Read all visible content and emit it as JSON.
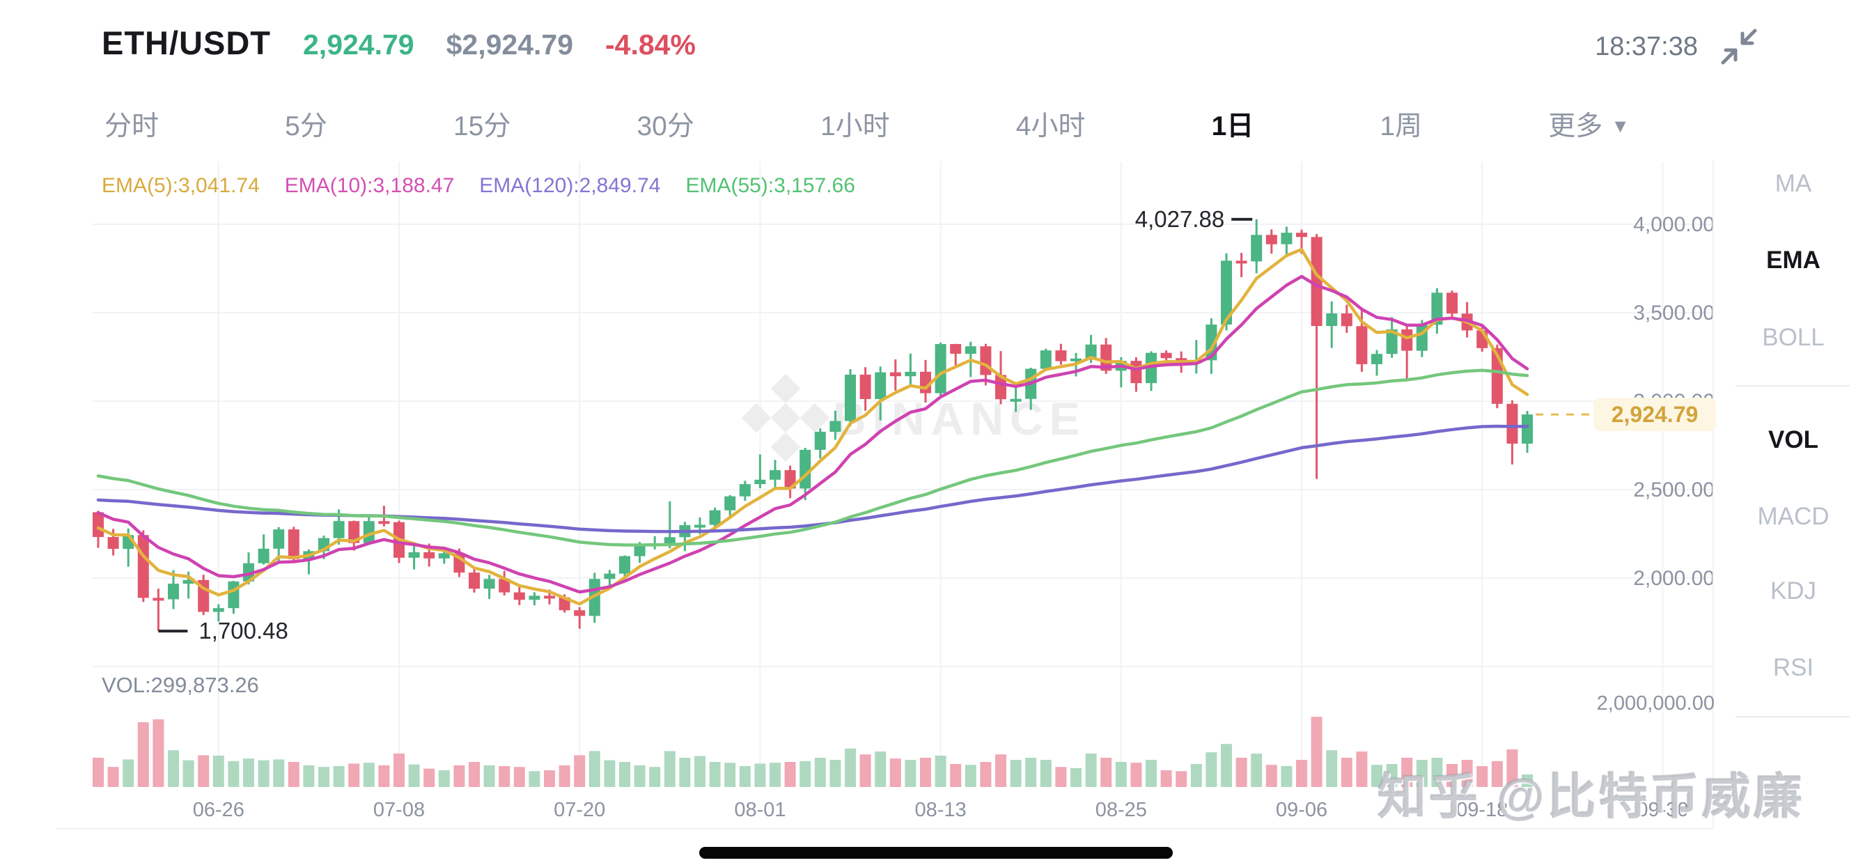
{
  "header": {
    "symbol": "ETH/USDT",
    "price": "2,924.79",
    "price_usd": "$2,924.79",
    "change": "-4.84%",
    "time": "18:37:38"
  },
  "tabs": [
    {
      "label": "分时",
      "active": false
    },
    {
      "label": "5分",
      "active": false
    },
    {
      "label": "15分",
      "active": false
    },
    {
      "label": "30分",
      "active": false
    },
    {
      "label": "1小时",
      "active": false
    },
    {
      "label": "4小时",
      "active": false
    },
    {
      "label": "1日",
      "active": true
    },
    {
      "label": "1周",
      "active": false
    },
    {
      "label": "更多",
      "active": false
    }
  ],
  "legend": [
    {
      "label": "EMA(5):3,041.74",
      "color": "#d9a93c"
    },
    {
      "label": "EMA(10):3,188.47",
      "color": "#d44fb4"
    },
    {
      "label": "EMA(120):2,849.74",
      "color": "#8276d4"
    },
    {
      "label": "EMA(55):3,157.66",
      "color": "#52c273"
    }
  ],
  "side_panel": {
    "items": [
      {
        "label": "MA",
        "active": false
      },
      {
        "label": "EMA",
        "active": true
      },
      {
        "label": "BOLL",
        "active": false
      },
      {
        "label": "VOL",
        "active": true
      },
      {
        "label": "MACD",
        "active": false
      },
      {
        "label": "KDJ",
        "active": false
      },
      {
        "label": "RSI",
        "active": false
      }
    ]
  },
  "volume_pane": {
    "label": "VOL:299,873.26",
    "axis_label": "2,000,000.00"
  },
  "watermarks": {
    "brand": "BINANCE",
    "user": "知乎 @比特币威廉"
  },
  "chart_data": {
    "type": "candlestick",
    "y_ticks": [
      {
        "price": 4000,
        "label": "4,000.00"
      },
      {
        "price": 3500,
        "label": "3,500.00"
      },
      {
        "price": 3000,
        "label": "3,000.00"
      },
      {
        "price": 2500,
        "label": "2,500.00"
      },
      {
        "price": 2000,
        "label": "2,000.00"
      },
      {
        "price": 1500,
        "label": null
      }
    ],
    "x_ticks": [
      {
        "label": "06-26",
        "i": 8
      },
      {
        "label": "07-08",
        "i": 20
      },
      {
        "label": "07-20",
        "i": 32
      },
      {
        "label": "08-01",
        "i": 44
      },
      {
        "label": "08-13",
        "i": 56
      },
      {
        "label": "08-25",
        "i": 68
      },
      {
        "label": "09-06",
        "i": 80
      },
      {
        "label": "09-18",
        "i": 92
      },
      {
        "label": "09-30",
        "i": 104
      }
    ],
    "volume_axis": {
      "value_k": 2000
    },
    "current_price": {
      "label": "2,924.79",
      "value": 2924.79
    },
    "annotations": [
      {
        "type": "high",
        "label": "4,027.88",
        "value": 4027.88,
        "index": 77
      },
      {
        "type": "low",
        "label": "1,700.48",
        "value": 1700.48,
        "index": 4
      }
    ],
    "colors": {
      "up": "#4bb583",
      "down": "#e1566b",
      "vol_up": "#aed9c0",
      "vol_down": "#f0a8b4",
      "price_line": "#e5bb55",
      "tag_bg": "#fdf6e2",
      "tag_text": "#d2a33b",
      "grid": "#f1f2f5",
      "axis_text": "#8b93a1",
      "annotation": "#23262b",
      "watermark": "#ededee"
    },
    "emas": [
      {
        "name": "ema5",
        "period": 5,
        "seed": 2310,
        "color": "#e2b33d"
      },
      {
        "name": "ema10",
        "period": 10,
        "seed": 2400,
        "color": "#cf42b0"
      },
      {
        "name": "ema120",
        "period": 120,
        "seed": 2445,
        "color": "#7468cc"
      },
      {
        "name": "ema55",
        "period": 55,
        "seed": 2590,
        "color": "#74c77c"
      }
    ],
    "candles": [
      [
        "06-18",
        2372,
        2380,
        2171,
        2232,
        700
      ],
      [
        "06-19",
        2232,
        2278,
        2128,
        2165,
        480
      ],
      [
        "06-20",
        2165,
        2280,
        2064,
        2243,
        660
      ],
      [
        "06-21",
        2243,
        2270,
        1865,
        1888,
        1550
      ],
      [
        "06-22",
        1888,
        1940,
        1700.48,
        1880,
        1620
      ],
      [
        "06-23",
        1880,
        2045,
        1825,
        1968,
        880
      ],
      [
        "06-24",
        1968,
        2036,
        1884,
        1989,
        640
      ],
      [
        "06-25",
        1989,
        2019,
        1791,
        1809,
        760
      ],
      [
        "06-26",
        1809,
        1852,
        1754,
        1830,
        750
      ],
      [
        "06-27",
        1830,
        1984,
        1798,
        1981,
        620
      ],
      [
        "06-28",
        1981,
        2145,
        1964,
        2084,
        680
      ],
      [
        "06-29",
        2084,
        2247,
        2076,
        2166,
        640
      ],
      [
        "06-30",
        2166,
        2288,
        2089,
        2275,
        660
      ],
      [
        "07-01",
        2275,
        2290,
        2086,
        2107,
        600
      ],
      [
        "07-02",
        2107,
        2162,
        2021,
        2152,
        520
      ],
      [
        "07-03",
        2152,
        2240,
        2107,
        2226,
        480
      ],
      [
        "07-04",
        2226,
        2388,
        2189,
        2322,
        500
      ],
      [
        "07-05",
        2322,
        2325,
        2155,
        2198,
        560
      ],
      [
        "07-06",
        2198,
        2350,
        2193,
        2322,
        580
      ],
      [
        "07-07",
        2322,
        2409,
        2292,
        2316,
        520
      ],
      [
        "07-08",
        2316,
        2325,
        2085,
        2115,
        800
      ],
      [
        "07-09",
        2115,
        2189,
        2049,
        2146,
        540
      ],
      [
        "07-10",
        2146,
        2195,
        2065,
        2111,
        440
      ],
      [
        "07-11",
        2111,
        2174,
        2081,
        2140,
        400
      ],
      [
        "07-12",
        2140,
        2167,
        2006,
        2031,
        520
      ],
      [
        "07-13",
        2031,
        2056,
        1918,
        1940,
        600
      ],
      [
        "07-14",
        1940,
        2018,
        1882,
        1995,
        520
      ],
      [
        "07-15",
        1995,
        2041,
        1902,
        1919,
        500
      ],
      [
        "07-16",
        1919,
        1952,
        1847,
        1877,
        480
      ],
      [
        "07-17",
        1877,
        1920,
        1846,
        1900,
        380
      ],
      [
        "07-18",
        1900,
        1934,
        1851,
        1891,
        400
      ],
      [
        "07-19",
        1891,
        1908,
        1805,
        1818,
        520
      ],
      [
        "07-20",
        1818,
        1836,
        1714,
        1786,
        760
      ],
      [
        "07-21",
        1786,
        2030,
        1747,
        1995,
        860
      ],
      [
        "07-22",
        1995,
        2046,
        1945,
        2025,
        640
      ],
      [
        "07-23",
        2025,
        2128,
        2000,
        2124,
        600
      ],
      [
        "07-24",
        2124,
        2204,
        2086,
        2189,
        520
      ],
      [
        "07-25",
        2189,
        2237,
        2162,
        2197,
        480
      ],
      [
        "07-26",
        2197,
        2434,
        2168,
        2231,
        860
      ],
      [
        "07-27",
        2231,
        2318,
        2152,
        2299,
        700
      ],
      [
        "07-28",
        2299,
        2343,
        2248,
        2301,
        740
      ],
      [
        "07-29",
        2301,
        2398,
        2276,
        2383,
        600
      ],
      [
        "07-30",
        2383,
        2469,
        2335,
        2462,
        580
      ],
      [
        "07-31",
        2462,
        2550,
        2437,
        2531,
        500
      ],
      [
        "08-01",
        2531,
        2699,
        2508,
        2556,
        560
      ],
      [
        "08-02",
        2556,
        2668,
        2512,
        2610,
        580
      ],
      [
        "08-03",
        2610,
        2636,
        2452,
        2506,
        600
      ],
      [
        "08-04",
        2506,
        2736,
        2441,
        2725,
        620
      ],
      [
        "08-05",
        2725,
        2846,
        2676,
        2827,
        700
      ],
      [
        "08-06",
        2827,
        2946,
        2782,
        2888,
        650
      ],
      [
        "08-07",
        2888,
        3181,
        2858,
        3150,
        920
      ],
      [
        "08-08",
        3150,
        3192,
        2946,
        3012,
        780
      ],
      [
        "08-09",
        3012,
        3196,
        2891,
        3163,
        850
      ],
      [
        "08-10",
        3163,
        3236,
        3060,
        3141,
        680
      ],
      [
        "08-11",
        3141,
        3269,
        3092,
        3166,
        650
      ],
      [
        "08-12",
        3166,
        3233,
        2992,
        3045,
        700
      ],
      [
        "08-13",
        3045,
        3331,
        3021,
        3323,
        750
      ],
      [
        "08-14",
        3323,
        3324,
        3201,
        3268,
        550
      ],
      [
        "08-15",
        3268,
        3336,
        3136,
        3310,
        530
      ],
      [
        "08-16",
        3310,
        3324,
        3089,
        3148,
        600
      ],
      [
        "08-17",
        3148,
        3283,
        2983,
        3011,
        780
      ],
      [
        "08-18",
        3011,
        3101,
        2940,
        3013,
        650
      ],
      [
        "08-19",
        3013,
        3189,
        2951,
        3183,
        700
      ],
      [
        "08-20",
        3183,
        3297,
        3171,
        3287,
        650
      ],
      [
        "08-21",
        3287,
        3324,
        3206,
        3226,
        480
      ],
      [
        "08-22",
        3226,
        3273,
        3140,
        3241,
        450
      ],
      [
        "08-23",
        3241,
        3374,
        3216,
        3320,
        800
      ],
      [
        "08-24",
        3320,
        3357,
        3154,
        3172,
        700
      ],
      [
        "08-25",
        3172,
        3249,
        3078,
        3228,
        600
      ],
      [
        "08-26",
        3228,
        3248,
        3053,
        3102,
        580
      ],
      [
        "08-27",
        3102,
        3282,
        3058,
        3273,
        650
      ],
      [
        "08-28",
        3273,
        3287,
        3212,
        3243,
        400
      ],
      [
        "08-29",
        3243,
        3281,
        3161,
        3222,
        380
      ],
      [
        "08-30",
        3222,
        3346,
        3156,
        3231,
        550
      ],
      [
        "08-31",
        3231,
        3468,
        3154,
        3433,
        830
      ],
      [
        "09-01",
        3433,
        3836,
        3400,
        3794,
        1030
      ],
      [
        "09-02",
        3794,
        3838,
        3701,
        3790,
        700
      ],
      [
        "09-03",
        3790,
        4027.88,
        3723,
        3940,
        800
      ],
      [
        "09-04",
        3940,
        3971,
        3834,
        3887,
        530
      ],
      [
        "09-05",
        3887,
        3986,
        3817,
        3952,
        500
      ],
      [
        "09-06",
        3952,
        3970,
        3833,
        3928,
        650
      ],
      [
        "09-07",
        3928,
        3945,
        2560,
        3425,
        1680
      ],
      [
        "09-08",
        3425,
        3564,
        3300,
        3496,
        880
      ],
      [
        "09-09",
        3496,
        3545,
        3386,
        3424,
        700
      ],
      [
        "09-10",
        3424,
        3512,
        3166,
        3209,
        850
      ],
      [
        "09-11",
        3209,
        3289,
        3144,
        3267,
        530
      ],
      [
        "09-12",
        3267,
        3475,
        3245,
        3406,
        550
      ],
      [
        "09-13",
        3406,
        3433,
        3118,
        3285,
        700
      ],
      [
        "09-14",
        3285,
        3459,
        3249,
        3432,
        650
      ],
      [
        "09-15",
        3432,
        3639,
        3382,
        3613,
        700
      ],
      [
        "09-16",
        3613,
        3625,
        3470,
        3495,
        550
      ],
      [
        "09-17",
        3495,
        3560,
        3360,
        3400,
        650
      ],
      [
        "09-18",
        3400,
        3430,
        3280,
        3300,
        500
      ],
      [
        "09-19",
        3300,
        3320,
        2960,
        2985,
        620
      ],
      [
        "09-20",
        2985,
        3005,
        2642,
        2760,
        900
      ],
      [
        "09-21",
        2760,
        2945,
        2708,
        2924.79,
        300
      ]
    ]
  }
}
